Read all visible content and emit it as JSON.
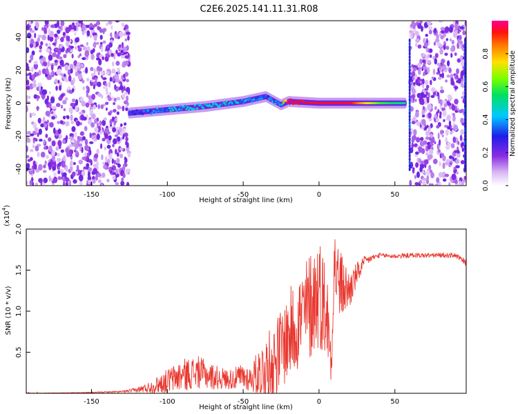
{
  "title": "C2E6.2025.141.11.31.R08",
  "colors": {
    "snr_line": "#e8382f",
    "background": "#ffffff",
    "axes": "#000000"
  },
  "chart_data": [
    {
      "type": "heatmap",
      "name": "spectrogram",
      "xlabel": "Height of straight line (km)",
      "ylabel": "Frequency (Hz)",
      "xlim": [
        -193,
        97
      ],
      "ylim": [
        -50,
        50
      ],
      "xticks": [
        -150,
        -100,
        -50,
        0,
        50
      ],
      "xtick_labels": [
        "-150",
        "-100",
        "-50",
        "0",
        "50"
      ],
      "yticks": [
        -40,
        -20,
        0,
        20,
        40
      ],
      "ytick_labels": [
        "-40",
        "-20",
        "0",
        "20",
        "40"
      ],
      "colorbar": {
        "label": "Normalized spectral amplitude",
        "range": [
          0,
          1
        ],
        "ticks": [
          0.0,
          0.2,
          0.4,
          0.6,
          0.8
        ],
        "tick_labels": [
          "0.0",
          "0.2",
          "0.4",
          "0.6",
          "0.8"
        ],
        "colormap": "rainbow"
      },
      "noise_regions_km": [
        [
          -193,
          -125
        ],
        [
          60,
          97
        ]
      ],
      "signal_band": {
        "x": [
          -125,
          -100,
          -75,
          -50,
          -35,
          -25,
          -20,
          0,
          20,
          40,
          57
        ],
        "freq_hz": [
          -6,
          -4,
          -2,
          1,
          4,
          -1,
          1,
          0,
          0,
          0,
          0
        ],
        "amplitude": [
          0.3,
          0.4,
          0.45,
          0.4,
          0.35,
          0.4,
          0.95,
          0.95,
          0.95,
          0.6,
          0.5
        ]
      }
    },
    {
      "type": "line",
      "name": "snr",
      "xlabel": "Height of straight line (km)",
      "ylabel": "SNR (10 * v/v)",
      "yscale_label": "(x10",
      "yscale_exponent": "4",
      "xlim": [
        -193,
        97
      ],
      "ylim": [
        0,
        20000
      ],
      "xticks": [
        -150,
        -100,
        -50,
        0,
        50
      ],
      "xtick_labels": [
        "-150",
        "-100",
        "-50",
        "0",
        "50"
      ],
      "yticks": [
        5000,
        10000,
        15000,
        20000
      ],
      "ytick_labels": [
        "0.5",
        "1.0",
        "1.5",
        "2.0"
      ],
      "series": [
        {
          "x": [
            -193,
            -170,
            -150,
            -130,
            -120,
            -110,
            -100,
            -90,
            -80,
            -70,
            -60,
            -55,
            -50,
            -45,
            -40,
            -35,
            -30,
            -25,
            -20,
            -15,
            -10,
            -5,
            0,
            5,
            8,
            10,
            12,
            15,
            20,
            25,
            30,
            35,
            40,
            50,
            60,
            70,
            80,
            90,
            97
          ],
          "y": [
            0,
            50,
            100,
            200,
            400,
            800,
            1500,
            2200,
            2600,
            2000,
            1700,
            1800,
            2000,
            1800,
            2500,
            3000,
            4000,
            5500,
            7000,
            8500,
            9500,
            11000,
            12500,
            10000,
            4000,
            16000,
            14000,
            13000,
            12500,
            14500,
            16000,
            16500,
            16800,
            16700,
            16800,
            16800,
            16800,
            16800,
            15800
          ],
          "amplitude_noise": [
            20,
            20,
            50,
            100,
            300,
            800,
            1500,
            2000,
            2000,
            1600,
            1200,
            1400,
            1800,
            1500,
            3000,
            4000,
            4500,
            5000,
            5500,
            6000,
            6500,
            7000,
            7000,
            6000,
            3000,
            5000,
            5000,
            4000,
            2500,
            1500,
            700,
            400,
            300,
            300,
            300,
            300,
            300,
            300,
            500
          ]
        }
      ]
    }
  ]
}
